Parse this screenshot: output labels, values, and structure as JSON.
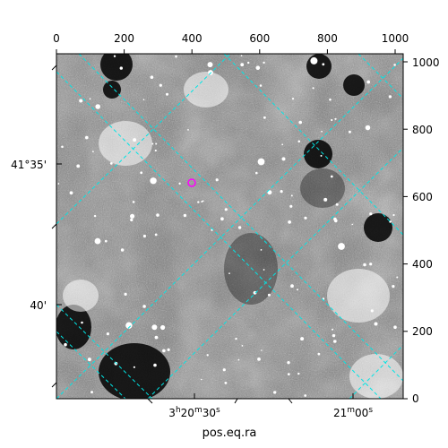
{
  "chart_data": {
    "type": "image",
    "description_free": true,
    "pixel_axes": {
      "top_x": {
        "ticks": [
          "0",
          "200",
          "400",
          "600",
          "800",
          "1000"
        ],
        "range": [
          0,
          1024
        ]
      },
      "right_y": {
        "ticks": [
          "0",
          "200",
          "400",
          "600",
          "800",
          "1000"
        ],
        "range": [
          0,
          1024
        ]
      }
    },
    "world_axes": {
      "dec_label_left": [
        "41°35'",
        "40'"
      ],
      "ra_label_bottom": [
        "3h20m30s",
        "21m00s"
      ],
      "xlabel": "pos.eq.ra"
    },
    "grid": {
      "on": true,
      "color": "#00e5e5",
      "style": "dashed"
    },
    "marker": {
      "color": "#ff00ff",
      "shape": "circle",
      "x": 405,
      "y": 640
    }
  }
}
